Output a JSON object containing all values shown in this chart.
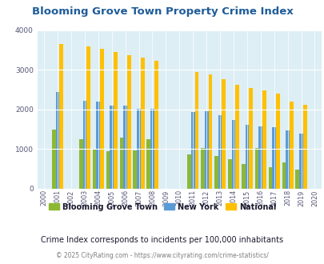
{
  "title": "Blooming Grove Town Property Crime Index",
  "subtitle": "Crime Index corresponds to incidents per 100,000 inhabitants",
  "footer": "© 2025 CityRating.com - https://www.cityrating.com/crime-statistics/",
  "years": [
    2000,
    2001,
    2002,
    2003,
    2004,
    2005,
    2006,
    2007,
    2008,
    2009,
    2010,
    2011,
    2012,
    2013,
    2014,
    2015,
    2016,
    2017,
    2018,
    2019,
    2020
  ],
  "blooming": [
    0,
    1500,
    0,
    1260,
    1010,
    940,
    1300,
    960,
    1260,
    0,
    0,
    860,
    1020,
    830,
    740,
    630,
    1020,
    550,
    670,
    480,
    0
  ],
  "newyork": [
    0,
    2450,
    0,
    2230,
    2200,
    2110,
    2090,
    2010,
    2010,
    0,
    0,
    1940,
    1960,
    1850,
    1730,
    1610,
    1580,
    1550,
    1470,
    1390,
    0
  ],
  "national": [
    0,
    3660,
    0,
    3600,
    3530,
    3460,
    3380,
    3320,
    3230,
    0,
    0,
    2940,
    2880,
    2760,
    2620,
    2540,
    2480,
    2400,
    2200,
    2130,
    0
  ],
  "color_blooming": "#8db832",
  "color_newyork": "#5b9bd5",
  "color_national": "#ffc000",
  "bg_color": "#ddeef5",
  "ylim": [
    0,
    4000
  ],
  "yticks": [
    0,
    1000,
    2000,
    3000,
    4000
  ],
  "bar_width": 0.28,
  "legend_labels": [
    "Blooming Grove Town",
    "New York",
    "National"
  ],
  "title_color": "#1f5c99",
  "subtitle_color": "#1a1a2e",
  "footer_color": "#7f7f7f"
}
